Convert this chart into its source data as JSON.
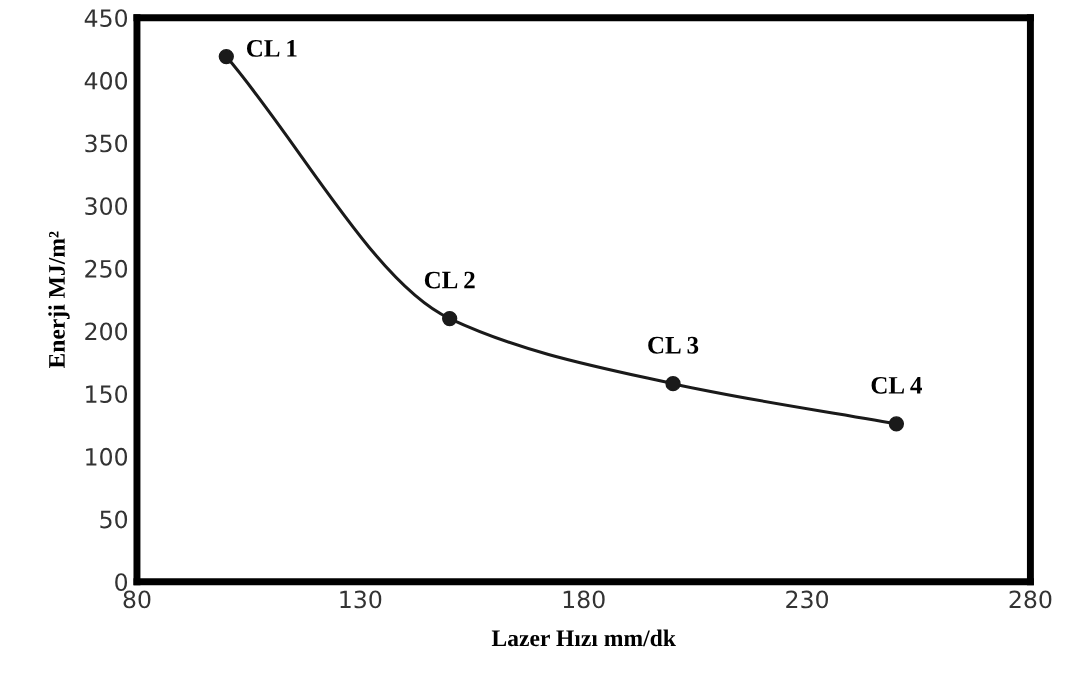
{
  "chart_data": {
    "type": "line",
    "xlabel": "Lazer Hızı mm/dk",
    "ylabel": "Enerji MJ/m²",
    "x": [
      100,
      150,
      200,
      250
    ],
    "series": [
      {
        "color": "#1a1a1a",
        "values": [
          419,
          210,
          158,
          126
        ]
      }
    ],
    "marker": "circle",
    "line_style": "solid",
    "grid": false,
    "xlim": [
      80,
      280
    ],
    "xticks": [
      80,
      130,
      180,
      230,
      280
    ],
    "ylim": [
      0,
      450
    ],
    "yticks": [
      0,
      50,
      100,
      150,
      200,
      250,
      300,
      350,
      400,
      450
    ],
    "annotations": [
      {
        "text": "CL 1",
        "x": 100,
        "y": 419
      },
      {
        "text": "CL 2",
        "x": 150,
        "y": 210
      },
      {
        "text": "CL 3",
        "x": 200,
        "y": 158
      },
      {
        "text": "CL 4",
        "x": 250,
        "y": 126
      }
    ]
  }
}
